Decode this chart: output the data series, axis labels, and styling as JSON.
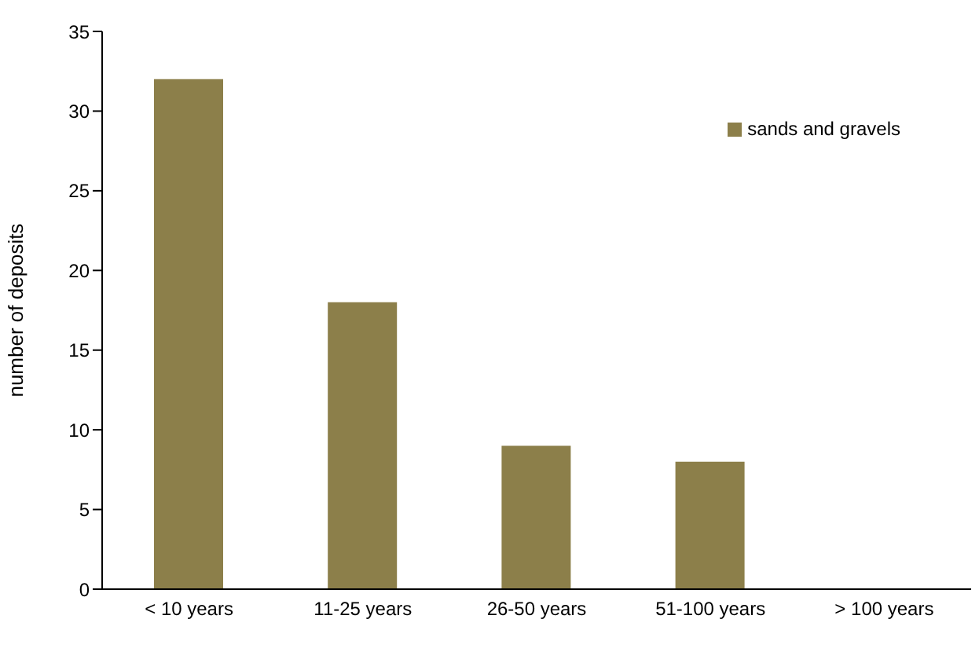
{
  "chart_data": {
    "type": "bar",
    "ylabel": "number of deposits",
    "categories": [
      "< 10 years",
      "11-25 years",
      "26-50 years",
      "51-100 years",
      "> 100 years"
    ],
    "series": [
      {
        "name": "sands and gravels",
        "color": "#8c7f4a",
        "values": [
          32,
          18,
          9,
          8,
          0
        ]
      }
    ],
    "ylim": [
      0,
      35
    ],
    "yticks": [
      0,
      5,
      10,
      15,
      20,
      25,
      30,
      35
    ],
    "grid": false,
    "legend": "top right"
  }
}
